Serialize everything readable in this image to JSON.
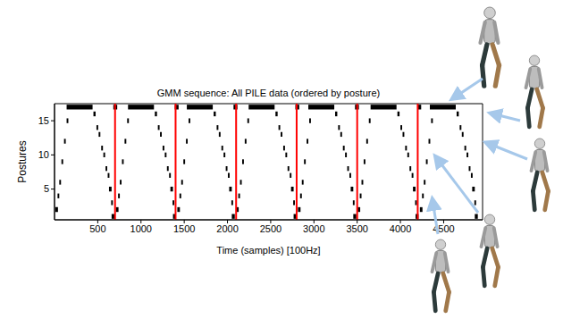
{
  "chart_data": {
    "type": "raster",
    "title": "GMM sequence: All PILE data (ordered by posture)",
    "x_label": "Time (samples) [100Hz]",
    "y_label": "Postures",
    "xlim": [
      0,
      4950
    ],
    "ylim": [
      0.5,
      17.5
    ],
    "xticks": [
      500,
      1000,
      1500,
      2000,
      2500,
      3000,
      3500,
      4000,
      4500
    ],
    "yticks": [
      5,
      10,
      15
    ],
    "color": "#000000",
    "vlines": {
      "x": [
        700,
        1400,
        2100,
        2800,
        3500,
        4200
      ],
      "color": "#ff0000"
    },
    "segments": [
      [
        2,
        10,
        40
      ],
      [
        4,
        35,
        55
      ],
      [
        6,
        55,
        75
      ],
      [
        9,
        80,
        100
      ],
      [
        12,
        110,
        130
      ],
      [
        15,
        140,
        160
      ],
      [
        17,
        140,
        440
      ],
      [
        16,
        450,
        475
      ],
      [
        14,
        485,
        505
      ],
      [
        13,
        510,
        530
      ],
      [
        11,
        540,
        560
      ],
      [
        10,
        565,
        585
      ],
      [
        8,
        590,
        610
      ],
      [
        7,
        615,
        635
      ],
      [
        5,
        630,
        660
      ],
      [
        3,
        655,
        675
      ],
      [
        1,
        660,
        695
      ],
      [
        17,
        680,
        725
      ],
      [
        2,
        710,
        740
      ],
      [
        4,
        735,
        755
      ],
      [
        6,
        755,
        775
      ],
      [
        9,
        780,
        800
      ],
      [
        12,
        810,
        830
      ],
      [
        15,
        840,
        860
      ],
      [
        17,
        850,
        1150
      ],
      [
        16,
        1160,
        1185
      ],
      [
        14,
        1195,
        1215
      ],
      [
        13,
        1220,
        1240
      ],
      [
        11,
        1250,
        1270
      ],
      [
        10,
        1275,
        1295
      ],
      [
        8,
        1300,
        1320
      ],
      [
        7,
        1325,
        1345
      ],
      [
        5,
        1340,
        1370
      ],
      [
        3,
        1365,
        1385
      ],
      [
        1,
        1370,
        1405
      ],
      [
        17,
        1390,
        1435
      ],
      [
        2,
        1420,
        1450
      ],
      [
        4,
        1445,
        1465
      ],
      [
        6,
        1465,
        1485
      ],
      [
        9,
        1490,
        1510
      ],
      [
        12,
        1520,
        1540
      ],
      [
        15,
        1550,
        1570
      ],
      [
        17,
        1530,
        1830
      ],
      [
        16,
        1840,
        1865
      ],
      [
        14,
        1875,
        1895
      ],
      [
        13,
        1900,
        1920
      ],
      [
        11,
        1930,
        1950
      ],
      [
        10,
        1955,
        1975
      ],
      [
        8,
        1980,
        2000
      ],
      [
        7,
        2005,
        2025
      ],
      [
        5,
        2020,
        2050
      ],
      [
        3,
        2045,
        2065
      ],
      [
        1,
        2050,
        2085
      ],
      [
        17,
        2070,
        2115
      ],
      [
        2,
        2100,
        2130
      ],
      [
        4,
        2125,
        2145
      ],
      [
        6,
        2145,
        2165
      ],
      [
        9,
        2170,
        2190
      ],
      [
        12,
        2200,
        2220
      ],
      [
        15,
        2230,
        2250
      ],
      [
        17,
        2245,
        2545
      ],
      [
        16,
        2555,
        2580
      ],
      [
        14,
        2590,
        2610
      ],
      [
        13,
        2615,
        2635
      ],
      [
        11,
        2645,
        2665
      ],
      [
        10,
        2670,
        2690
      ],
      [
        8,
        2695,
        2715
      ],
      [
        7,
        2720,
        2740
      ],
      [
        5,
        2735,
        2765
      ],
      [
        3,
        2760,
        2780
      ],
      [
        1,
        2765,
        2800
      ],
      [
        17,
        2785,
        2830
      ],
      [
        2,
        2815,
        2845
      ],
      [
        4,
        2840,
        2860
      ],
      [
        6,
        2860,
        2880
      ],
      [
        9,
        2885,
        2905
      ],
      [
        12,
        2915,
        2935
      ],
      [
        15,
        2945,
        2965
      ],
      [
        17,
        2935,
        3235
      ],
      [
        16,
        3245,
        3270
      ],
      [
        14,
        3280,
        3300
      ],
      [
        13,
        3305,
        3325
      ],
      [
        11,
        3335,
        3355
      ],
      [
        10,
        3360,
        3380
      ],
      [
        8,
        3385,
        3405
      ],
      [
        7,
        3410,
        3430
      ],
      [
        5,
        3425,
        3455
      ],
      [
        3,
        3450,
        3470
      ],
      [
        1,
        3455,
        3490
      ],
      [
        17,
        3475,
        3520
      ],
      [
        2,
        3505,
        3535
      ],
      [
        4,
        3530,
        3550
      ],
      [
        6,
        3550,
        3570
      ],
      [
        9,
        3575,
        3595
      ],
      [
        12,
        3605,
        3625
      ],
      [
        15,
        3635,
        3655
      ],
      [
        17,
        3655,
        3955
      ],
      [
        16,
        3965,
        3990
      ],
      [
        14,
        4000,
        4020
      ],
      [
        13,
        4025,
        4045
      ],
      [
        11,
        4055,
        4075
      ],
      [
        10,
        4080,
        4100
      ],
      [
        8,
        4105,
        4125
      ],
      [
        7,
        4130,
        4150
      ],
      [
        5,
        4145,
        4175
      ],
      [
        3,
        4170,
        4190
      ],
      [
        1,
        4175,
        4210
      ],
      [
        17,
        4195,
        4240
      ],
      [
        2,
        4225,
        4255
      ],
      [
        4,
        4250,
        4270
      ],
      [
        6,
        4270,
        4290
      ],
      [
        9,
        4295,
        4315
      ],
      [
        12,
        4325,
        4345
      ],
      [
        15,
        4355,
        4375
      ],
      [
        17,
        4340,
        4640
      ],
      [
        16,
        4650,
        4675
      ],
      [
        14,
        4685,
        4705
      ],
      [
        13,
        4710,
        4730
      ],
      [
        11,
        4740,
        4760
      ],
      [
        10,
        4765,
        4785
      ],
      [
        8,
        4790,
        4810
      ],
      [
        7,
        4815,
        4835
      ],
      [
        5,
        4830,
        4860
      ],
      [
        3,
        4855,
        4875
      ],
      [
        1,
        4860,
        4895
      ]
    ]
  }
}
